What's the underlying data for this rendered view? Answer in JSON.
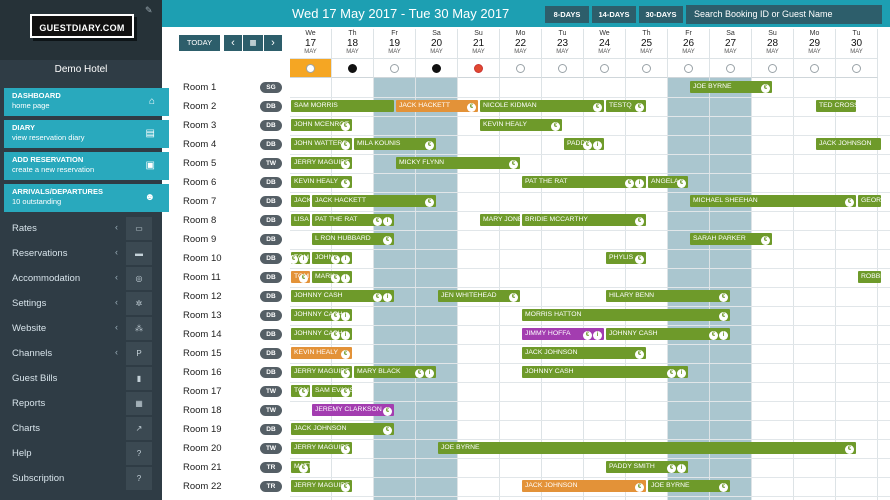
{
  "sidebar": {
    "logo": "GUESTDIARY.COM",
    "hotel_name": "Demo Hotel",
    "quick_links": [
      {
        "title": "DASHBOARD",
        "subtitle": "home page",
        "icon": "home-icon",
        "glyph": "⌂"
      },
      {
        "title": "DIARY",
        "subtitle": "view reservation diary",
        "icon": "book-icon",
        "glyph": "▤"
      },
      {
        "title": "ADD RESERVATION",
        "subtitle": "create a new reservation",
        "icon": "id-card-icon",
        "glyph": "▣"
      },
      {
        "title": "ARRIVALS/DEPARTURES",
        "subtitle": "10 outstanding",
        "icon": "users-icon",
        "glyph": "☻"
      }
    ],
    "nav": [
      {
        "label": "Rates",
        "chevron": true,
        "icon": "money-icon",
        "glyph": "▭"
      },
      {
        "label": "Reservations",
        "chevron": true,
        "icon": "bed-icon",
        "glyph": "▬"
      },
      {
        "label": "Accommodation",
        "chevron": true,
        "icon": "target-icon",
        "glyph": "◎"
      },
      {
        "label": "Settings",
        "chevron": true,
        "icon": "gear-icon",
        "glyph": "✲"
      },
      {
        "label": "Website",
        "chevron": true,
        "icon": "sitemap-icon",
        "glyph": "⁂"
      },
      {
        "label": "Channels",
        "chevron": true,
        "icon": "parking-icon",
        "glyph": "P"
      },
      {
        "label": "Guest Bills",
        "chevron": false,
        "icon": "bill-icon",
        "glyph": "▮"
      },
      {
        "label": "Reports",
        "chevron": false,
        "icon": "report-icon",
        "glyph": "▦"
      },
      {
        "label": "Charts",
        "chevron": false,
        "icon": "chart-icon",
        "glyph": "↗"
      },
      {
        "label": "Help",
        "chevron": false,
        "icon": "help-icon",
        "glyph": "?"
      },
      {
        "label": "Subscription",
        "chevron": false,
        "icon": "question-icon",
        "glyph": "?"
      }
    ]
  },
  "topbar": {
    "date_range": "Wed 17 May 2017 - Tue 30 May 2017",
    "range_buttons": [
      "8-DAYS",
      "14-DAYS",
      "30-DAYS"
    ],
    "search_placeholder": "Search Booking ID or Guest Name"
  },
  "controls": {
    "today": "TODAY",
    "prev": "‹",
    "calendar": "▦",
    "next": "›"
  },
  "days": [
    {
      "name": "We",
      "num": "17",
      "month": "MAY",
      "weekend": false,
      "dot": "white",
      "today": true
    },
    {
      "name": "Th",
      "num": "18",
      "month": "MAY",
      "weekend": false,
      "dot": "black"
    },
    {
      "name": "Fr",
      "num": "19",
      "month": "MAY",
      "weekend": true,
      "dot": "white"
    },
    {
      "name": "Sa",
      "num": "20",
      "month": "MAY",
      "weekend": true,
      "dot": "black"
    },
    {
      "name": "Su",
      "num": "21",
      "month": "MAY",
      "weekend": false,
      "dot": "red"
    },
    {
      "name": "Mo",
      "num": "22",
      "month": "MAY",
      "weekend": false,
      "dot": "white"
    },
    {
      "name": "Tu",
      "num": "23",
      "month": "MAY",
      "weekend": false,
      "dot": "white"
    },
    {
      "name": "We",
      "num": "24",
      "month": "MAY",
      "weekend": false,
      "dot": "white"
    },
    {
      "name": "Th",
      "num": "25",
      "month": "MAY",
      "weekend": false,
      "dot": "white"
    },
    {
      "name": "Fr",
      "num": "26",
      "month": "MAY",
      "weekend": true,
      "dot": "white"
    },
    {
      "name": "Sa",
      "num": "27",
      "month": "MAY",
      "weekend": true,
      "dot": "white"
    },
    {
      "name": "Su",
      "num": "28",
      "month": "MAY",
      "weekend": false,
      "dot": "white"
    },
    {
      "name": "Mo",
      "num": "29",
      "month": "MAY",
      "weekend": false,
      "dot": "white"
    },
    {
      "name": "Tu",
      "num": "30",
      "month": "MAY",
      "weekend": false,
      "dot": "white"
    }
  ],
  "rooms": [
    {
      "name": "Room 1",
      "type": "SG"
    },
    {
      "name": "Room 2",
      "type": "DB"
    },
    {
      "name": "Room 3",
      "type": "DB"
    },
    {
      "name": "Room 4",
      "type": "DB"
    },
    {
      "name": "Room 5",
      "type": "TW"
    },
    {
      "name": "Room 6",
      "type": "DB"
    },
    {
      "name": "Room 7",
      "type": "DB"
    },
    {
      "name": "Room 8",
      "type": "DB"
    },
    {
      "name": "Room 9",
      "type": "DB"
    },
    {
      "name": "Room 10",
      "type": "DB"
    },
    {
      "name": "Room 11",
      "type": "DB"
    },
    {
      "name": "Room 12",
      "type": "DB"
    },
    {
      "name": "Room 13",
      "type": "DB"
    },
    {
      "name": "Room 14",
      "type": "DB"
    },
    {
      "name": "Room 15",
      "type": "DB"
    },
    {
      "name": "Room 16",
      "type": "DB"
    },
    {
      "name": "Room 17",
      "type": "TW"
    },
    {
      "name": "Room 18",
      "type": "TW"
    },
    {
      "name": "Room 19",
      "type": "DB"
    },
    {
      "name": "Room 20",
      "type": "TW"
    },
    {
      "name": "Room 21",
      "type": "TR"
    },
    {
      "name": "Room 22",
      "type": "TR"
    }
  ],
  "bookings": [
    {
      "room": 0,
      "start": 9.5,
      "nights": 2,
      "guest": "JOE BYRNE",
      "color": "green",
      "icons": [
        "€"
      ]
    },
    {
      "room": 1,
      "start": 0,
      "nights": 2.5,
      "guest": "SAM MORRIS",
      "color": "green",
      "icons": []
    },
    {
      "room": 1,
      "start": 2.5,
      "nights": 2,
      "guest": "JACK HACKETT",
      "color": "orange",
      "icons": [
        "€"
      ]
    },
    {
      "room": 1,
      "start": 4.5,
      "nights": 3,
      "guest": "NICOLE KIDMAN",
      "color": "green",
      "icons": [
        "€"
      ]
    },
    {
      "room": 1,
      "start": 7.5,
      "nights": 1,
      "guest": "TESTQ",
      "color": "green",
      "icons": [
        "€"
      ]
    },
    {
      "room": 1,
      "start": 12.5,
      "nights": 1,
      "guest": "TED CROSS",
      "color": "green",
      "icons": []
    },
    {
      "room": 2,
      "start": 0,
      "nights": 1.5,
      "guest": "JOHN MCENROE",
      "color": "green",
      "icons": [
        "€"
      ]
    },
    {
      "room": 2,
      "start": 4.5,
      "nights": 2,
      "guest": "KEVIN HEALY",
      "color": "green",
      "icons": [
        "€"
      ]
    },
    {
      "room": 3,
      "start": 0,
      "nights": 1.5,
      "guest": "JOHN WATTERS",
      "color": "green",
      "icons": [
        "€"
      ]
    },
    {
      "room": 3,
      "start": 1.5,
      "nights": 2,
      "guest": "MILA KOUNIS",
      "color": "green",
      "icons": [
        "€"
      ]
    },
    {
      "room": 3,
      "start": 6.5,
      "nights": 1,
      "guest": "PADDY",
      "color": "green",
      "icons": [
        "€",
        "i"
      ]
    },
    {
      "room": 3,
      "start": 12.5,
      "nights": 1.6,
      "guest": "JACK JOHNSON",
      "color": "green",
      "icons": []
    },
    {
      "room": 4,
      "start": 0,
      "nights": 1.5,
      "guest": "JERRY MAGUIRE",
      "color": "green",
      "icons": [
        "€"
      ]
    },
    {
      "room": 4,
      "start": 2.5,
      "nights": 3,
      "guest": "MICKY FLYNN",
      "color": "green",
      "icons": [
        "€"
      ]
    },
    {
      "room": 5,
      "start": 0,
      "nights": 1.5,
      "guest": "KEVIN HEALY",
      "color": "green",
      "icons": [
        "€"
      ]
    },
    {
      "room": 5,
      "start": 5.5,
      "nights": 3,
      "guest": "PAT THE RAT",
      "color": "green",
      "icons": [
        "€",
        "i"
      ]
    },
    {
      "room": 5,
      "start": 8.5,
      "nights": 1,
      "guest": "ANGELA",
      "color": "green",
      "icons": [
        "€"
      ]
    },
    {
      "room": 6,
      "start": 0,
      "nights": 0.5,
      "guest": "JACK",
      "color": "green",
      "icons": []
    },
    {
      "room": 6,
      "start": 0.5,
      "nights": 3,
      "guest": "JACK HACKETT",
      "color": "green",
      "icons": [
        "€"
      ]
    },
    {
      "room": 6,
      "start": 9.5,
      "nights": 4,
      "guest": "MICHAEL SHEEHAN",
      "color": "green",
      "icons": [
        "€"
      ]
    },
    {
      "room": 6,
      "start": 13.5,
      "nights": 0.6,
      "guest": "GEORGE",
      "color": "green",
      "icons": []
    },
    {
      "room": 7,
      "start": 0,
      "nights": 0.5,
      "guest": "LISA",
      "color": "green",
      "icons": []
    },
    {
      "room": 7,
      "start": 0.5,
      "nights": 2,
      "guest": "PAT THE RAT",
      "color": "green",
      "icons": [
        "€",
        "i"
      ]
    },
    {
      "room": 7,
      "start": 4.5,
      "nights": 1,
      "guest": "MARY JONES",
      "color": "green",
      "icons": []
    },
    {
      "room": 7,
      "start": 5.5,
      "nights": 3,
      "guest": "BRIDIE MCCARTHY",
      "color": "green",
      "icons": [
        "€"
      ]
    },
    {
      "room": 8,
      "start": 0.5,
      "nights": 2,
      "guest": "L RON HUBBARD",
      "color": "green",
      "icons": [
        "€"
      ]
    },
    {
      "room": 8,
      "start": 9.5,
      "nights": 2,
      "guest": "SARAH PARKER",
      "color": "green",
      "icons": [
        "€"
      ]
    },
    {
      "room": 9,
      "start": 0,
      "nights": 0.5,
      "guest": "TOM",
      "color": "green",
      "icons": [
        "€",
        "i"
      ]
    },
    {
      "room": 9,
      "start": 0.5,
      "nights": 1,
      "guest": "JOHN",
      "color": "green",
      "icons": [
        "€",
        "i"
      ]
    },
    {
      "room": 9,
      "start": 7.5,
      "nights": 1,
      "guest": "PHYLIS",
      "color": "green",
      "icons": [
        "€"
      ]
    },
    {
      "room": 10,
      "start": 0,
      "nights": 0.5,
      "guest": "TOM",
      "color": "orange",
      "icons": [
        "€"
      ]
    },
    {
      "room": 10,
      "start": 0.5,
      "nights": 1,
      "guest": "MARK",
      "color": "green",
      "icons": [
        "€",
        "i"
      ]
    },
    {
      "room": 10,
      "start": 13.5,
      "nights": 0.6,
      "guest": "ROBBIE",
      "color": "green",
      "icons": []
    },
    {
      "room": 11,
      "start": 0,
      "nights": 2.5,
      "guest": "JOHNNY CASH",
      "color": "green",
      "icons": [
        "€",
        "i"
      ]
    },
    {
      "room": 11,
      "start": 3.5,
      "nights": 2,
      "guest": "JEN WHITEHEAD",
      "color": "green",
      "icons": [
        "€"
      ]
    },
    {
      "room": 11,
      "start": 7.5,
      "nights": 3,
      "guest": "HILARY BENN",
      "color": "green",
      "icons": [
        "€"
      ]
    },
    {
      "room": 12,
      "start": 0,
      "nights": 1.5,
      "guest": "JOHNNY CASH",
      "color": "green",
      "icons": [
        "€",
        "i"
      ]
    },
    {
      "room": 12,
      "start": 5.5,
      "nights": 5,
      "guest": "MORRIS HATTON",
      "color": "green",
      "icons": [
        "€"
      ]
    },
    {
      "room": 13,
      "start": 0,
      "nights": 1.5,
      "guest": "JOHNNY CASH",
      "color": "green",
      "icons": [
        "€",
        "i"
      ]
    },
    {
      "room": 13,
      "start": 5.5,
      "nights": 2,
      "guest": "JIMMY HOFFA",
      "color": "purple",
      "icons": [
        "€",
        "i"
      ]
    },
    {
      "room": 13,
      "start": 7.5,
      "nights": 3,
      "guest": "JOHNNY CASH",
      "color": "green",
      "icons": [
        "€",
        "i"
      ]
    },
    {
      "room": 14,
      "start": 0,
      "nights": 1.5,
      "guest": "KEVIN HEALY",
      "color": "orange",
      "icons": [
        "€"
      ]
    },
    {
      "room": 14,
      "start": 5.5,
      "nights": 3,
      "guest": "JACK JOHNSON",
      "color": "green",
      "icons": [
        "€"
      ]
    },
    {
      "room": 15,
      "start": 0,
      "nights": 1.5,
      "guest": "JERRY MAGUIRE",
      "color": "green",
      "icons": [
        "€"
      ]
    },
    {
      "room": 15,
      "start": 1.5,
      "nights": 2,
      "guest": "MARY BLACK",
      "color": "green",
      "icons": [
        "€",
        "i"
      ]
    },
    {
      "room": 15,
      "start": 5.5,
      "nights": 4,
      "guest": "JOHNNY CASH",
      "color": "green",
      "icons": [
        "€",
        "i"
      ]
    },
    {
      "room": 16,
      "start": 0,
      "nights": 0.5,
      "guest": "TOM",
      "color": "green",
      "icons": [
        "€"
      ]
    },
    {
      "room": 16,
      "start": 0.5,
      "nights": 1,
      "guest": "SAM EVANS",
      "color": "green",
      "icons": [
        "€"
      ]
    },
    {
      "room": 17,
      "start": 0.5,
      "nights": 2,
      "guest": "JEREMY CLARKSON",
      "color": "purple",
      "icons": [
        "€"
      ]
    },
    {
      "room": 18,
      "start": 0,
      "nights": 2.5,
      "guest": "JACK JOHNSON",
      "color": "green",
      "icons": [
        "€"
      ]
    },
    {
      "room": 19,
      "start": 0,
      "nights": 1.5,
      "guest": "JERRY MAGUIRE",
      "color": "green",
      "icons": [
        "€"
      ]
    },
    {
      "room": 19,
      "start": 3.5,
      "nights": 10,
      "guest": "JOE BYRNE",
      "color": "green",
      "icons": [
        "€"
      ]
    },
    {
      "room": 20,
      "start": 0,
      "nights": 0.5,
      "guest": "MATT",
      "color": "green",
      "icons": [
        "€"
      ]
    },
    {
      "room": 20,
      "start": 7.5,
      "nights": 2,
      "guest": "PADDY SMITH",
      "color": "green",
      "icons": [
        "€",
        "i"
      ]
    },
    {
      "room": 21,
      "start": 0,
      "nights": 1.5,
      "guest": "JERRY MAGUIRE",
      "color": "green",
      "icons": [
        "€"
      ]
    },
    {
      "room": 21,
      "start": 5.5,
      "nights": 3,
      "guest": "JACK JOHNSON",
      "color": "orange",
      "icons": [
        "€"
      ]
    },
    {
      "room": 21,
      "start": 8.5,
      "nights": 2,
      "guest": "JOE BYRNE",
      "color": "green",
      "icons": [
        "€"
      ]
    }
  ]
}
